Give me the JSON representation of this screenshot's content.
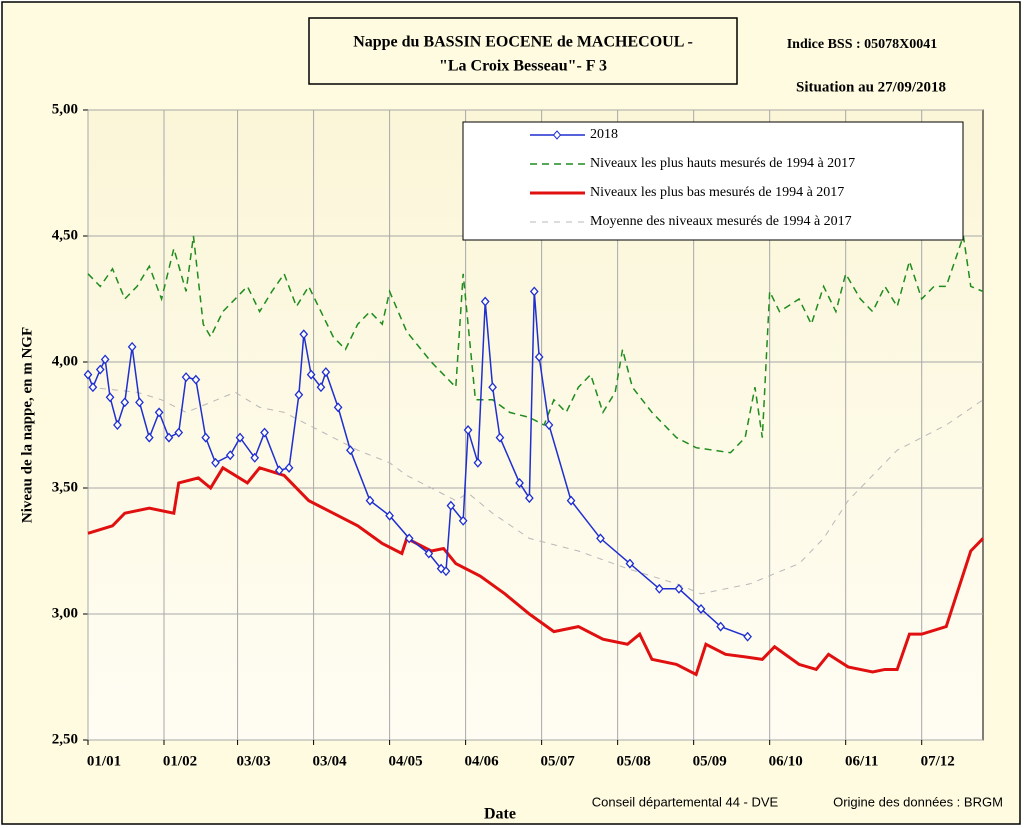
{
  "chart_data": {
    "type": "line",
    "title": [
      "Nappe du BASSIN EOCENE de MACHECOUL  -",
      "\"La Croix Besseau\"- F 3"
    ],
    "index": "Indice BSS : 05078X0041",
    "situation": "Situation au 27/09/2018",
    "y_label": "Niveau de la nappe, en m NGF",
    "x_label": "Date",
    "footer": [
      "Conseil départemental 44 - DVE",
      "Origine des données : BRGM"
    ],
    "xlim": [
      0,
      365
    ],
    "xticks": [
      {
        "value": 0,
        "label": "01/01"
      },
      {
        "value": 31,
        "label": "01/02"
      },
      {
        "value": 61,
        "label": "03/03"
      },
      {
        "value": 92,
        "label": "03/04"
      },
      {
        "value": 123,
        "label": "04/05"
      },
      {
        "value": 154,
        "label": "04/06"
      },
      {
        "value": 185,
        "label": "05/07"
      },
      {
        "value": 216,
        "label": "05/08"
      },
      {
        "value": 247,
        "label": "05/09"
      },
      {
        "value": 278,
        "label": "06/10"
      },
      {
        "value": 309,
        "label": "06/11"
      },
      {
        "value": 340,
        "label": "07/12"
      }
    ],
    "ylim": [
      2.5,
      5
    ],
    "yticks": [
      {
        "value": 2.5,
        "label": "2,50"
      },
      {
        "value": 3,
        "label": "3,00"
      },
      {
        "value": 3.5,
        "label": "3,50"
      },
      {
        "value": 4,
        "label": "4,00"
      },
      {
        "value": 4.5,
        "label": "4,50"
      },
      {
        "value": 5,
        "label": "5,00"
      }
    ],
    "grid": true,
    "series": [
      {
        "name": "2018",
        "color": "#1f2fd0",
        "style": "marker",
        "x": [
          0,
          2,
          5,
          7,
          9,
          12,
          15,
          18,
          21,
          25,
          29,
          33,
          37,
          40,
          44,
          48,
          52,
          58,
          62,
          68,
          72,
          78,
          82,
          86,
          88,
          91,
          95,
          97,
          102,
          107,
          115,
          123,
          131,
          139,
          144,
          146,
          148,
          153,
          155,
          159,
          162,
          165,
          168,
          176,
          180,
          182,
          184,
          188,
          197,
          209,
          221,
          233,
          241,
          250,
          258,
          269
        ],
        "values": [
          3.95,
          3.9,
          3.97,
          4.01,
          3.86,
          3.75,
          3.84,
          4.06,
          3.84,
          3.7,
          3.8,
          3.7,
          3.72,
          3.94,
          3.93,
          3.7,
          3.6,
          3.63,
          3.7,
          3.62,
          3.72,
          3.57,
          3.58,
          3.87,
          4.11,
          3.95,
          3.9,
          3.96,
          3.82,
          3.65,
          3.45,
          3.39,
          3.3,
          3.24,
          3.18,
          3.17,
          3.43,
          3.37,
          3.73,
          3.6,
          4.24,
          3.9,
          3.7,
          3.52,
          3.46,
          4.28,
          4.02,
          3.75,
          3.45,
          3.3,
          3.2,
          3.1,
          3.1,
          3.02,
          2.95,
          2.91
        ]
      },
      {
        "name": "Niveaux les plus hauts mesurés de 1994 à 2017",
        "color": "#1e8c1e",
        "style": "dash",
        "x": [
          0,
          5,
          10,
          15,
          20,
          25,
          30,
          35,
          40,
          43,
          47,
          50,
          55,
          60,
          65,
          70,
          75,
          80,
          85,
          90,
          95,
          100,
          105,
          110,
          115,
          120,
          123,
          130,
          140,
          150,
          153,
          158,
          165,
          172,
          180,
          186,
          190,
          195,
          200,
          205,
          210,
          215,
          218,
          222,
          230,
          240,
          248,
          255,
          262,
          268,
          272,
          275,
          278,
          282,
          290,
          295,
          300,
          305,
          309,
          315,
          320,
          325,
          330,
          335,
          340,
          345,
          350,
          357,
          360,
          365
        ],
        "values": [
          4.35,
          4.3,
          4.37,
          4.25,
          4.3,
          4.38,
          4.25,
          4.45,
          4.28,
          4.5,
          4.15,
          4.1,
          4.2,
          4.25,
          4.3,
          4.2,
          4.28,
          4.35,
          4.22,
          4.3,
          4.2,
          4.1,
          4.05,
          4.15,
          4.2,
          4.15,
          4.28,
          4.12,
          4.0,
          3.9,
          4.35,
          3.85,
          3.85,
          3.8,
          3.78,
          3.75,
          3.85,
          3.8,
          3.9,
          3.95,
          3.8,
          3.88,
          4.05,
          3.9,
          3.8,
          3.7,
          3.66,
          3.65,
          3.64,
          3.7,
          3.9,
          3.7,
          4.28,
          4.2,
          4.25,
          4.15,
          4.3,
          4.2,
          4.35,
          4.25,
          4.2,
          4.3,
          4.22,
          4.4,
          4.25,
          4.3,
          4.3,
          4.5,
          4.3,
          4.28
        ]
      },
      {
        "name": "Niveaux les plus bas mesurés de 1994 à 2017",
        "color": "#e01010",
        "style": "thick",
        "x": [
          0,
          10,
          15,
          25,
          35,
          37,
          45,
          50,
          55,
          65,
          70,
          80,
          90,
          100,
          110,
          120,
          128,
          130,
          140,
          145,
          150,
          160,
          170,
          180,
          190,
          200,
          210,
          220,
          225,
          230,
          240,
          248,
          252,
          260,
          268,
          275,
          280,
          290,
          297,
          302,
          310,
          320,
          325,
          330,
          335,
          340,
          350,
          355,
          360,
          365
        ],
        "values": [
          3.32,
          3.35,
          3.4,
          3.42,
          3.4,
          3.52,
          3.54,
          3.5,
          3.58,
          3.52,
          3.58,
          3.55,
          3.45,
          3.4,
          3.35,
          3.28,
          3.24,
          3.3,
          3.25,
          3.26,
          3.2,
          3.15,
          3.08,
          3.0,
          2.93,
          2.95,
          2.9,
          2.88,
          2.92,
          2.82,
          2.8,
          2.76,
          2.88,
          2.84,
          2.83,
          2.82,
          2.87,
          2.8,
          2.78,
          2.84,
          2.79,
          2.77,
          2.78,
          2.78,
          2.92,
          2.92,
          2.95,
          3.1,
          3.25,
          3.3
        ]
      },
      {
        "name": "Moyenne des niveaux mesurés de 1994 à 2017",
        "color": "#b8b8b8",
        "style": "thin",
        "x": [
          0,
          20,
          30,
          40,
          60,
          70,
          80,
          90,
          100,
          110,
          123,
          130,
          140,
          150,
          155,
          165,
          180,
          200,
          220,
          240,
          250,
          270,
          290,
          300,
          310,
          320,
          330,
          340,
          350,
          365
        ],
        "values": [
          3.9,
          3.88,
          3.85,
          3.8,
          3.88,
          3.82,
          3.8,
          3.75,
          3.7,
          3.65,
          3.6,
          3.55,
          3.5,
          3.45,
          3.48,
          3.4,
          3.3,
          3.25,
          3.18,
          3.12,
          3.08,
          3.12,
          3.2,
          3.3,
          3.45,
          3.55,
          3.65,
          3.7,
          3.75,
          3.85
        ]
      }
    ]
  }
}
